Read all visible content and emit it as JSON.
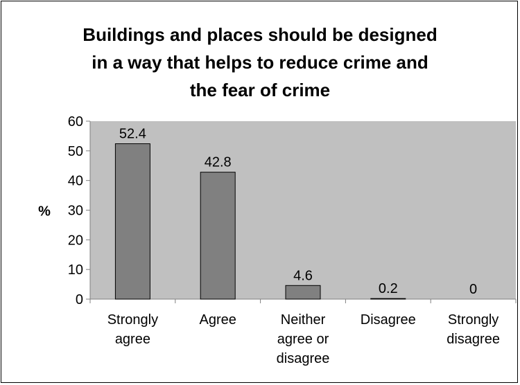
{
  "chart_data": {
    "type": "bar",
    "title_lines": [
      "Buildings and places should be designed",
      "in a way that helps to reduce crime and",
      "the fear of crime"
    ],
    "ylabel": "%",
    "ylim": [
      0,
      60
    ],
    "yticks": [
      0,
      10,
      20,
      30,
      40,
      50,
      60
    ],
    "grid": false,
    "legend": "none",
    "categories": [
      [
        "Strongly",
        "agree"
      ],
      [
        "Agree"
      ],
      [
        "Neither",
        "agree or",
        "disagree"
      ],
      [
        "Disagree"
      ],
      [
        "Strongly",
        "disagree"
      ]
    ],
    "values": [
      52.4,
      42.8,
      4.6,
      0.2,
      0
    ],
    "data_labels": [
      "52.4",
      "42.8",
      "4.6",
      "0.2",
      "0"
    ],
    "colors": {
      "plot_bg": "#c0c0c0",
      "bar": "#808080",
      "axis": "#808080"
    }
  }
}
